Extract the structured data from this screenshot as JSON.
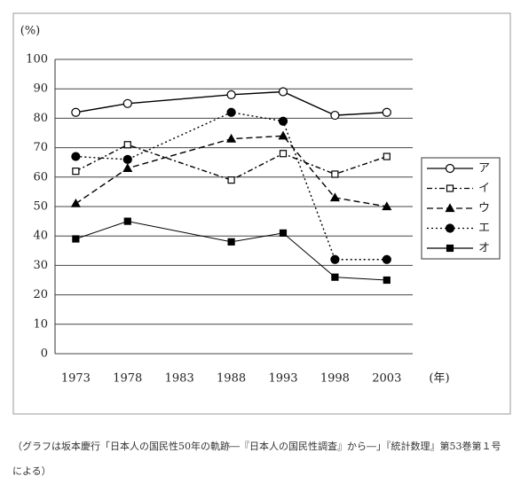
{
  "chart_data": {
    "type": "line",
    "y_label": "(%)",
    "x_label": "(年)",
    "x": [
      1973,
      1978,
      1988,
      1993,
      1998,
      2003
    ],
    "xlim": [
      1971,
      2005.5
    ],
    "xticks": [
      1973,
      1978,
      1983,
      1988,
      1993,
      1998,
      2003
    ],
    "ylim": [
      0,
      100
    ],
    "yticks": [
      0,
      10,
      20,
      30,
      40,
      50,
      60,
      70,
      80,
      90,
      100
    ],
    "grid": true,
    "legend": "right",
    "series": [
      {
        "name": "ア",
        "color": "#000000",
        "marker": "circle-open",
        "dash": "solid",
        "values": [
          82,
          85,
          88,
          89,
          81,
          82
        ]
      },
      {
        "name": "イ",
        "color": "#000000",
        "marker": "square-open",
        "dash": "dash-dot",
        "values": [
          62,
          71,
          59,
          68,
          61,
          67
        ]
      },
      {
        "name": "ウ",
        "color": "#000000",
        "marker": "triangle",
        "dash": "dashed",
        "values": [
          51,
          63,
          73,
          74,
          53,
          50
        ]
      },
      {
        "name": "エ",
        "color": "#000000",
        "marker": "circle",
        "dash": "dotted",
        "values": [
          67,
          66,
          82,
          79,
          32,
          32
        ]
      },
      {
        "name": "オ",
        "color": "#000000",
        "marker": "square",
        "dash": "solid-thin",
        "values": [
          39,
          45,
          38,
          41,
          26,
          25
        ]
      }
    ],
    "source": "（グラフは坂本慶行「日本人の国民性50年の軌跡―『日本人の国民性調査』から―」『統計数理』第53巻第１号による）"
  }
}
